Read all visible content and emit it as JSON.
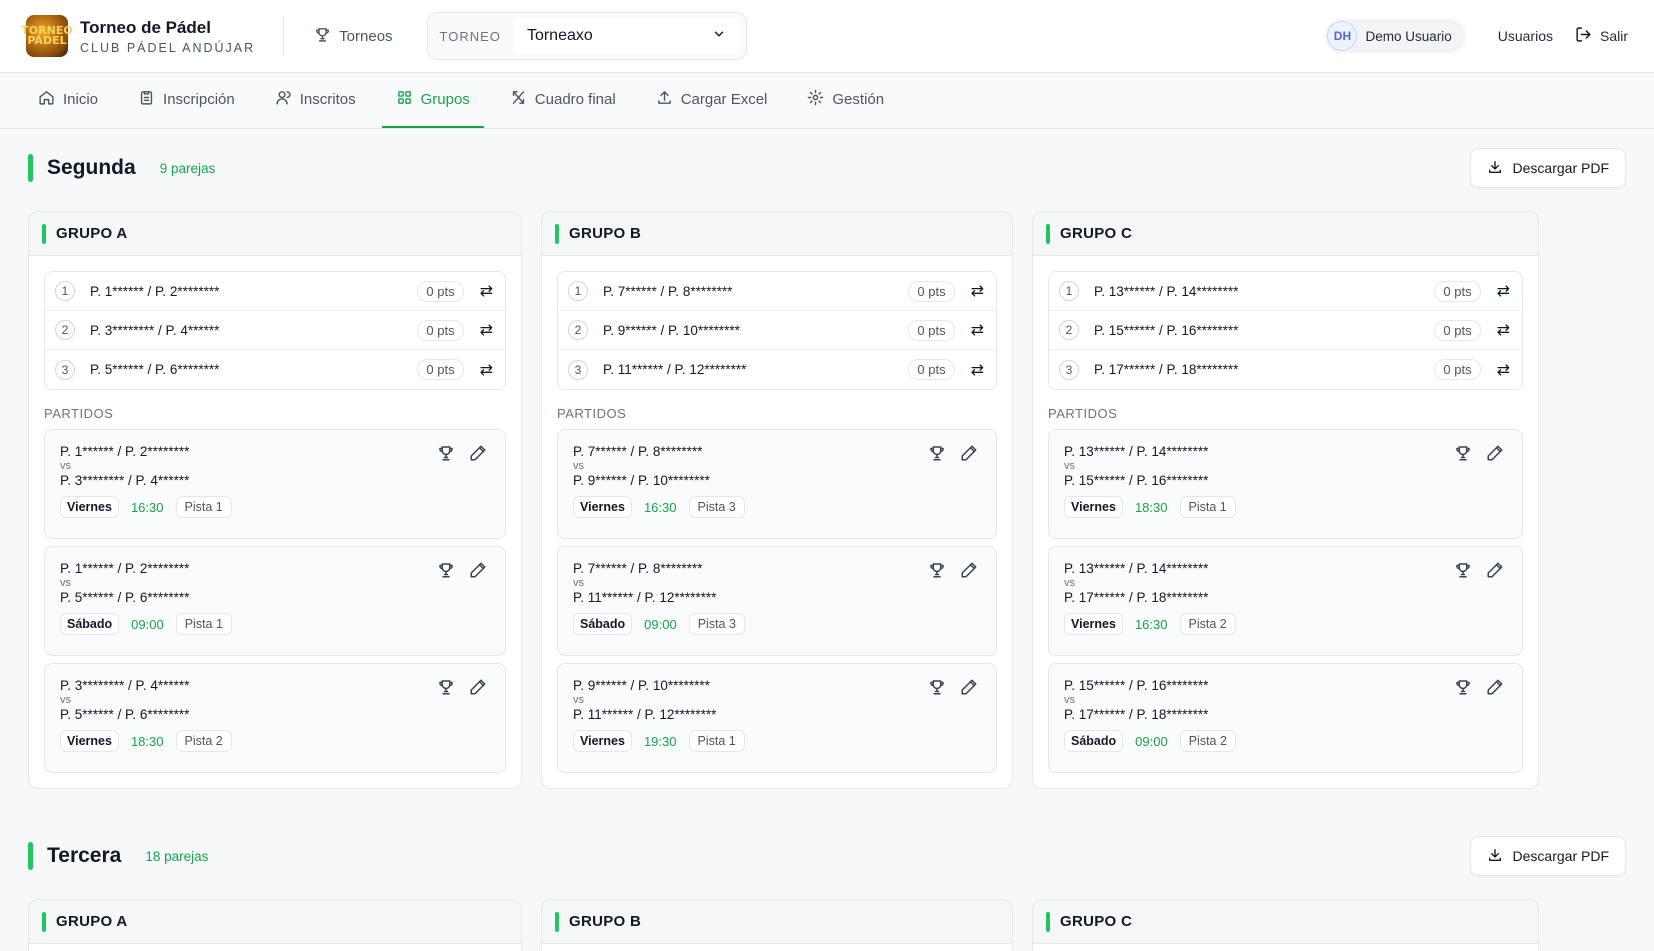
{
  "header": {
    "logo_text": "TORNEO PÁDEL",
    "brand_title": "Torneo de Pádel",
    "brand_sub": "CLUB PÁDEL ANDÚJAR",
    "torneos_label": "Torneos",
    "selector_label": "TORNEO",
    "selector_value": "Torneaxo",
    "avatar_initials": "DH",
    "user_name": "Demo Usuario",
    "usuarios_label": "Usuarios",
    "logout_label": "Salir"
  },
  "tabs": [
    {
      "label": "Inicio",
      "icon": "home-icon"
    },
    {
      "label": "Inscripción",
      "icon": "clipboard-icon"
    },
    {
      "label": "Inscritos",
      "icon": "users-icon"
    },
    {
      "label": "Grupos",
      "icon": "grid-icon",
      "active": true
    },
    {
      "label": "Cuadro final",
      "icon": "bracket-icon"
    },
    {
      "label": "Cargar Excel",
      "icon": "upload-icon"
    },
    {
      "label": "Gestión",
      "icon": "gear-icon"
    }
  ],
  "colors": {
    "accent": "#22c55e",
    "accent_text": "#16a34a"
  },
  "sections": [
    {
      "title": "Segunda",
      "count": "9 parejas",
      "pdf_label": "Descargar PDF",
      "groups": [
        {
          "name": "GRUPO A",
          "standings": [
            {
              "pos": "1",
              "pair": "P. 1****** / P. 2********",
              "pts": "0 pts"
            },
            {
              "pos": "2",
              "pair": "P. 3******** / P. 4******",
              "pts": "0 pts"
            },
            {
              "pos": "3",
              "pair": "P. 5****** / P. 6********",
              "pts": "0 pts"
            }
          ],
          "partidos_label": "PARTIDOS",
          "matches": [
            {
              "a": "P. 1****** / P. 2********",
              "vs": "vs",
              "b": "P. 3******** / P. 4******",
              "day": "Viernes",
              "time": "16:30",
              "court": "Pista 1"
            },
            {
              "a": "P. 1****** / P. 2********",
              "vs": "vs",
              "b": "P. 5****** / P. 6********",
              "day": "Sábado",
              "time": "09:00",
              "court": "Pista 1"
            },
            {
              "a": "P. 3******** / P. 4******",
              "vs": "vs",
              "b": "P. 5****** / P. 6********",
              "day": "Viernes",
              "time": "18:30",
              "court": "Pista 2"
            }
          ]
        },
        {
          "name": "GRUPO B",
          "standings": [
            {
              "pos": "1",
              "pair": "P. 7****** / P. 8********",
              "pts": "0 pts"
            },
            {
              "pos": "2",
              "pair": "P. 9****** / P. 10********",
              "pts": "0 pts"
            },
            {
              "pos": "3",
              "pair": "P. 11****** / P. 12********",
              "pts": "0 pts"
            }
          ],
          "partidos_label": "PARTIDOS",
          "matches": [
            {
              "a": "P. 7****** / P. 8********",
              "vs": "vs",
              "b": "P. 9****** / P. 10********",
              "day": "Viernes",
              "time": "16:30",
              "court": "Pista 3"
            },
            {
              "a": "P. 7****** / P. 8********",
              "vs": "vs",
              "b": "P. 11****** / P. 12********",
              "day": "Sábado",
              "time": "09:00",
              "court": "Pista 3"
            },
            {
              "a": "P. 9****** / P. 10********",
              "vs": "vs",
              "b": "P. 11****** / P. 12********",
              "day": "Viernes",
              "time": "19:30",
              "court": "Pista 1"
            }
          ]
        },
        {
          "name": "GRUPO C",
          "standings": [
            {
              "pos": "1",
              "pair": "P. 13****** / P. 14********",
              "pts": "0 pts"
            },
            {
              "pos": "2",
              "pair": "P. 15****** / P. 16********",
              "pts": "0 pts"
            },
            {
              "pos": "3",
              "pair": "P. 17****** / P. 18********",
              "pts": "0 pts"
            }
          ],
          "partidos_label": "PARTIDOS",
          "matches": [
            {
              "a": "P. 13****** / P. 14********",
              "vs": "vs",
              "b": "P. 15****** / P. 16********",
              "day": "Viernes",
              "time": "18:30",
              "court": "Pista 1"
            },
            {
              "a": "P. 13****** / P. 14********",
              "vs": "vs",
              "b": "P. 17****** / P. 18********",
              "day": "Viernes",
              "time": "16:30",
              "court": "Pista 2"
            },
            {
              "a": "P. 15****** / P. 16********",
              "vs": "vs",
              "b": "P. 17****** / P. 18********",
              "day": "Sábado",
              "time": "09:00",
              "court": "Pista 2"
            }
          ]
        }
      ]
    },
    {
      "title": "Tercera",
      "count": "18 parejas",
      "pdf_label": "Descargar PDF",
      "groups": [
        {
          "name": "GRUPO A"
        },
        {
          "name": "GRUPO B"
        },
        {
          "name": "GRUPO C"
        }
      ]
    }
  ]
}
